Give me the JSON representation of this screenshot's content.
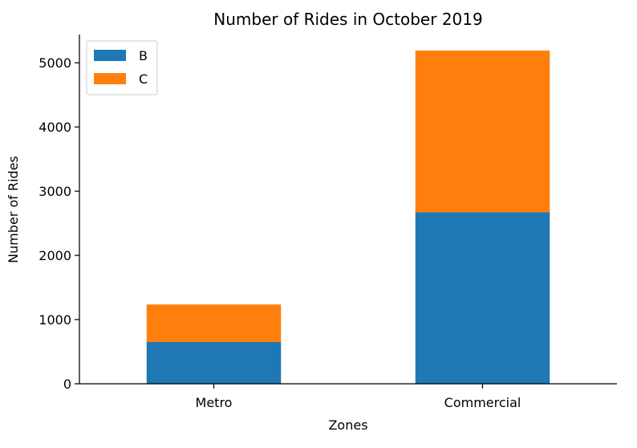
{
  "chart_data": {
    "type": "bar",
    "stacked": true,
    "title": "Number of Rides in October 2019",
    "xlabel": "Zones",
    "ylabel": "Number of Rides",
    "categories": [
      "Metro",
      "Commercial"
    ],
    "series": [
      {
        "name": "B",
        "values": [
          650,
          2670
        ],
        "color": "#1f77b4"
      },
      {
        "name": "C",
        "values": [
          585,
          2520
        ],
        "color": "#ff7f0e"
      }
    ],
    "ylim": [
      0,
      5440
    ],
    "yticks": [
      0,
      1000,
      2000,
      3000,
      4000,
      5000
    ],
    "grid": false,
    "legend_position": "top-left"
  }
}
